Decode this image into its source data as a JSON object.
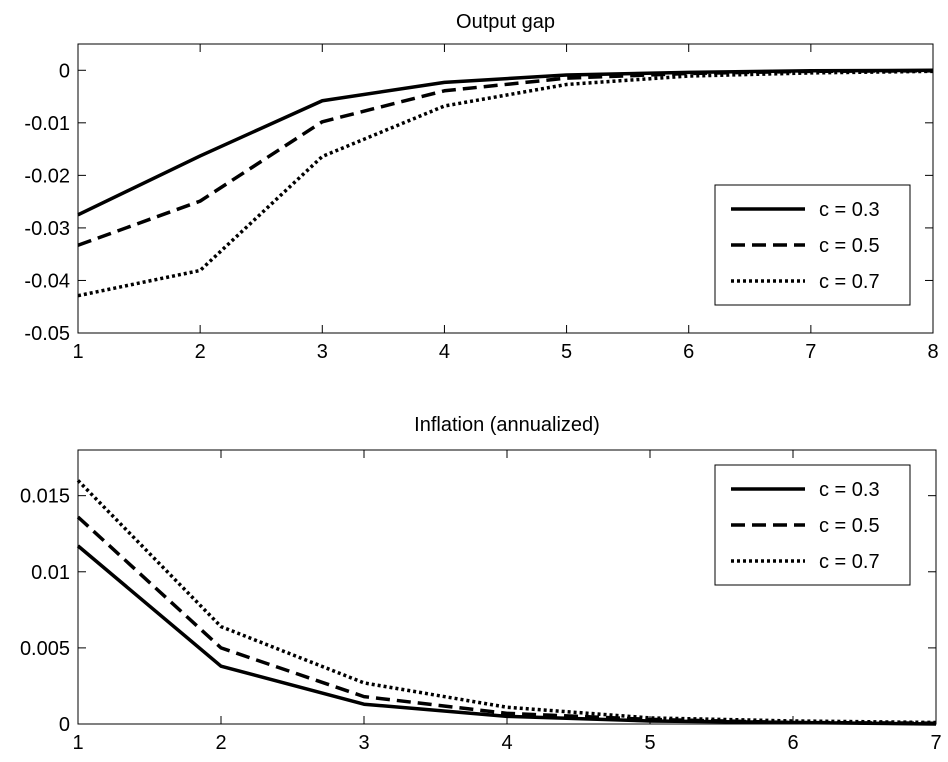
{
  "chart_data": [
    {
      "type": "line",
      "title": "Output gap",
      "xlabel": "",
      "ylabel": "",
      "xlim": [
        1,
        8
      ],
      "ylim": [
        -0.05,
        0.005
      ],
      "x": [
        1,
        2,
        3,
        4,
        5,
        6,
        7,
        8
      ],
      "xticks": [
        "1",
        "2",
        "3",
        "4",
        "5",
        "6",
        "7",
        "8"
      ],
      "yticks": [
        "0",
        "-0.01",
        "-0.02",
        "-0.03",
        "-0.04",
        "-0.05"
      ],
      "ytick_values": [
        0,
        -0.01,
        -0.02,
        -0.03,
        -0.04,
        -0.05
      ],
      "grid": false,
      "legend_position": "bottom-right",
      "series": [
        {
          "name": "c = 0.3",
          "style": "solid",
          "color": "#000000",
          "values": [
            -0.0275,
            -0.0163,
            -0.0058,
            -0.0023,
            -0.0009,
            -0.0004,
            -0.0001,
            0.0
          ]
        },
        {
          "name": "c = 0.5",
          "style": "dashed",
          "color": "#000000",
          "values": [
            -0.0333,
            -0.0249,
            -0.0098,
            -0.0039,
            -0.0015,
            -0.0006,
            -0.0002,
            -0.0001
          ]
        },
        {
          "name": "c = 0.7",
          "style": "dotted",
          "color": "#000000",
          "values": [
            -0.0429,
            -0.0381,
            -0.0164,
            -0.0068,
            -0.0027,
            -0.0011,
            -0.0005,
            -0.0002
          ]
        }
      ]
    },
    {
      "type": "line",
      "title": "Inflation (annualized)",
      "xlabel": "",
      "ylabel": "",
      "xlim": [
        1,
        7
      ],
      "ylim": [
        0,
        0.018
      ],
      "x": [
        1,
        2,
        3,
        4,
        5,
        6,
        7
      ],
      "xticks": [
        "1",
        "2",
        "3",
        "4",
        "5",
        "6",
        "7"
      ],
      "yticks": [
        "0.015",
        "0.01",
        "0.005",
        "0"
      ],
      "ytick_values": [
        0.015,
        0.01,
        0.005,
        0
      ],
      "grid": false,
      "legend_position": "top-right",
      "series": [
        {
          "name": "c = 0.3",
          "style": "solid",
          "color": "#000000",
          "values": [
            0.0117,
            0.0038,
            0.0013,
            0.0005,
            0.0002,
            0.0001,
            0.0
          ]
        },
        {
          "name": "c = 0.5",
          "style": "dashed",
          "color": "#000000",
          "values": [
            0.0136,
            0.005,
            0.0018,
            0.0007,
            0.0003,
            0.0001,
            5e-05
          ]
        },
        {
          "name": "c = 0.7",
          "style": "dotted",
          "color": "#000000",
          "values": [
            0.016,
            0.0064,
            0.0027,
            0.0011,
            0.0004,
            0.0002,
            0.0001
          ]
        }
      ]
    }
  ]
}
